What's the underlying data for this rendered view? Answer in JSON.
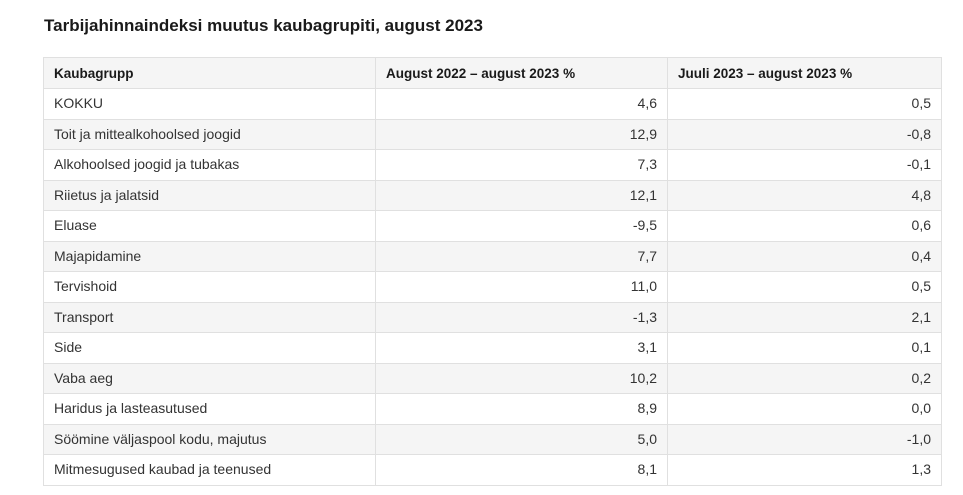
{
  "title": "Tarbijahinnaindeksi muutus kaubagrupiti, august 2023",
  "table": {
    "headers": [
      "Kaubagrupp",
      "August 2022 – august 2023 %",
      "Juuli 2023 – august 2023 %"
    ],
    "rows": [
      [
        "KOKKU",
        "4,6",
        "0,5"
      ],
      [
        "Toit ja mittealkohoolsed joogid",
        "12,9",
        "-0,8"
      ],
      [
        "Alkohoolsed joogid ja tubakas",
        "7,3",
        "-0,1"
      ],
      [
        "Riietus ja jalatsid",
        "12,1",
        "4,8"
      ],
      [
        "Eluase",
        "-9,5",
        "0,6"
      ],
      [
        "Majapidamine",
        "7,7",
        "0,4"
      ],
      [
        "Tervishoid",
        "11,0",
        "0,5"
      ],
      [
        "Transport",
        "-1,3",
        "2,1"
      ],
      [
        "Side",
        "3,1",
        "0,1"
      ],
      [
        "Vaba aeg",
        "10,2",
        "0,2"
      ],
      [
        "Haridus ja lasteasutused",
        "8,9",
        "0,0"
      ],
      [
        "Söömine väljaspool kodu, majutus",
        "5,0",
        "-1,0"
      ],
      [
        "Mitmesugused kaubad ja teenused",
        "8,1",
        "1,3"
      ]
    ]
  }
}
